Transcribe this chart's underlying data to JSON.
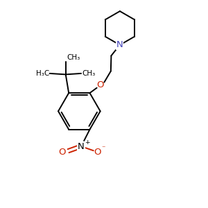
{
  "bg_color": "#ffffff",
  "bond_color": "#000000",
  "N_color": "#4444bb",
  "O_color": "#cc2200",
  "line_width": 1.4,
  "font_size": 7.5,
  "fig_size": [
    3.0,
    3.0
  ],
  "dpi": 100,
  "xlim": [
    0,
    10
  ],
  "ylim": [
    0,
    10
  ]
}
